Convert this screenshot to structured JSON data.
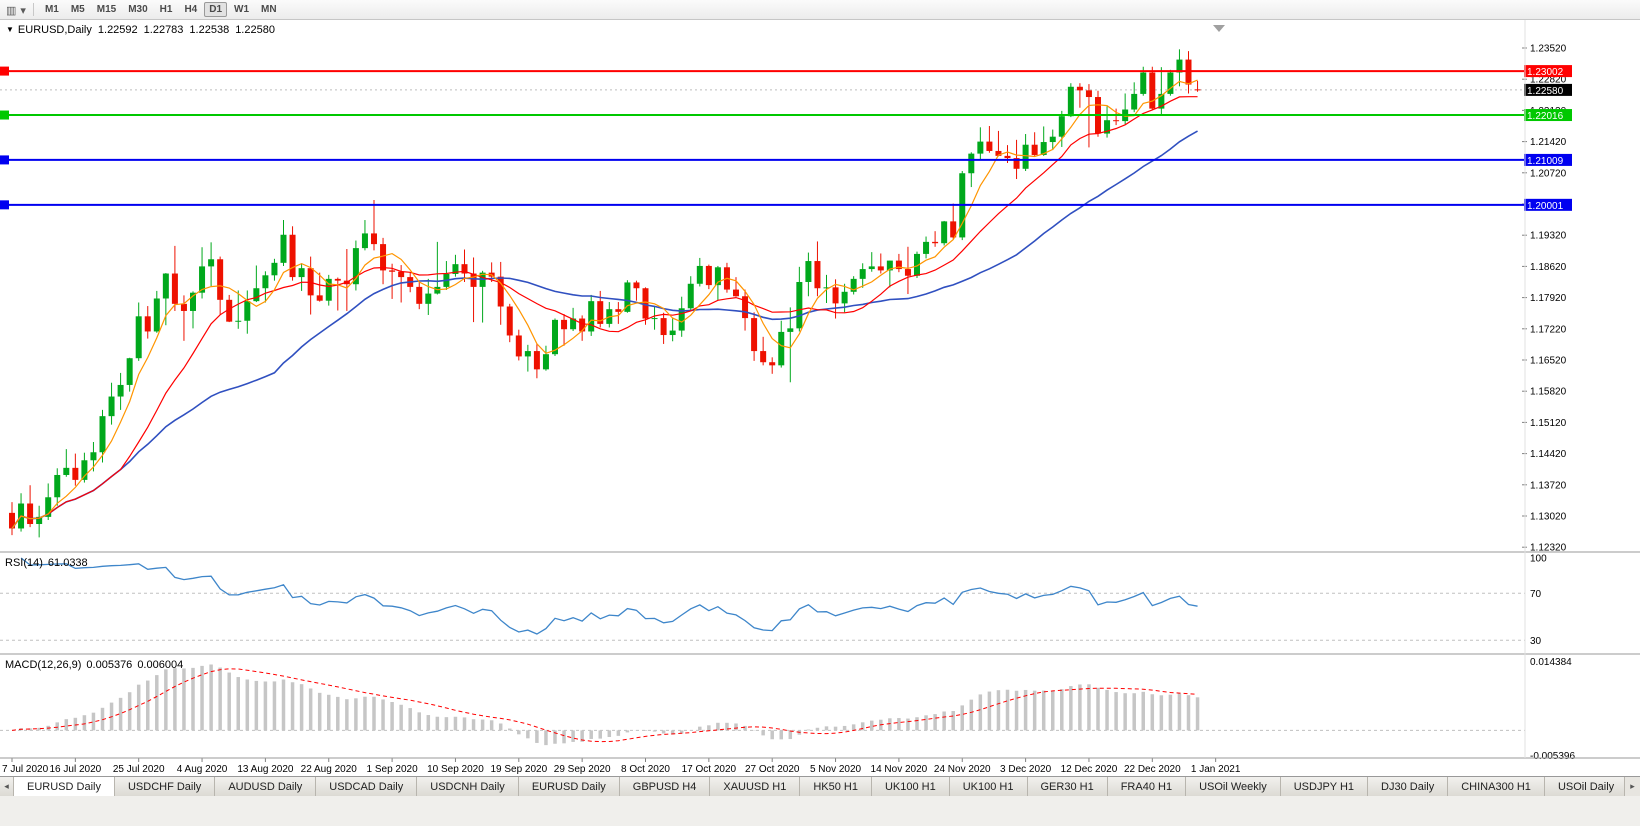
{
  "toolbar": {
    "icons": [
      {
        "name": "chart-window-icon",
        "glyph": "▥"
      },
      {
        "name": "chart-dropdown-caret-icon",
        "glyph": "▾"
      }
    ],
    "timeframes": [
      {
        "label": "M1",
        "active": false
      },
      {
        "label": "M5",
        "active": false
      },
      {
        "label": "M15",
        "active": false
      },
      {
        "label": "M30",
        "active": false
      },
      {
        "label": "H1",
        "active": false
      },
      {
        "label": "H4",
        "active": false
      },
      {
        "label": "D1",
        "active": true
      },
      {
        "label": "W1",
        "active": false
      },
      {
        "label": "MN",
        "active": false
      }
    ]
  },
  "chart_ui": {
    "title": {
      "collapse_glyph": "▼",
      "symbol_period": "EURUSD,Daily",
      "open": "1.22592",
      "high": "1.22783",
      "low": "1.22538",
      "close": "1.22580"
    }
  },
  "chart_data": {
    "type": "candlestick",
    "symbol": "EURUSD",
    "timeframe": "Daily",
    "colors": {
      "up": "#00A81C",
      "down": "#EE1100",
      "ma_fast": "#FF9500",
      "ma_mid": "#FF0000",
      "ma_slow": "#3050C0",
      "rsi_line": "#3E86CA",
      "hist": "#C6C6C6",
      "signal": "#FF0000",
      "level_dash": "#C0C0C0",
      "axis_text": "#000000"
    },
    "ma_periods": {
      "fast": 5,
      "mid": 13,
      "slow": 30
    },
    "price_axis": {
      "labels": [
        "1.23520",
        "1.22820",
        "1.22120",
        "1.21420",
        "1.20720",
        "1.20020",
        "1.19320",
        "1.18620",
        "1.17920",
        "1.17220",
        "1.16520",
        "1.15820",
        "1.15120",
        "1.14420",
        "1.13720",
        "1.13020",
        "1.12320"
      ],
      "boxes": [
        {
          "value": "1.23002",
          "color": "#FF0000"
        },
        {
          "value": "1.22580",
          "color": "#000000"
        },
        {
          "value": "1.22016",
          "color": "#00C800"
        },
        {
          "value": "1.21009",
          "color": "#0000F0"
        },
        {
          "value": "1.20001",
          "color": "#0000F0"
        }
      ]
    },
    "hlines": [
      {
        "price": 1.23002,
        "color": "#FF0000"
      },
      {
        "price": 1.22016,
        "color": "#00C800"
      },
      {
        "price": 1.21009,
        "color": "#0000F0"
      },
      {
        "price": 1.20001,
        "color": "#0000F0"
      }
    ],
    "date_axis": [
      "7 Jul 2020",
      "16 Jul 2020",
      "25 Jul 2020",
      "4 Aug 2020",
      "13 Aug 2020",
      "22 Aug 2020",
      "1 Sep 2020",
      "10 Sep 2020",
      "19 Sep 2020",
      "29 Sep 2020",
      "8 Oct 2020",
      "17 Oct 2020",
      "27 Oct 2020",
      "5 Nov 2020",
      "14 Nov 2020",
      "24 Nov 2020",
      "3 Dec 2020",
      "12 Dec 2020",
      "22 Dec 2020",
      "1 Jan 2021"
    ],
    "candles": [
      [
        1.1309,
        1.1333,
        1.1259,
        1.1274
      ],
      [
        1.1274,
        1.1353,
        1.1267,
        1.133
      ],
      [
        1.133,
        1.1371,
        1.1277,
        1.1284
      ],
      [
        1.1284,
        1.1325,
        1.1254,
        1.13
      ],
      [
        1.13,
        1.1375,
        1.1293,
        1.1344
      ],
      [
        1.1344,
        1.1409,
        1.1325,
        1.1394
      ],
      [
        1.1394,
        1.1452,
        1.139,
        1.141
      ],
      [
        1.141,
        1.1442,
        1.137,
        1.1383
      ],
      [
        1.1383,
        1.1444,
        1.1377,
        1.1427
      ],
      [
        1.1427,
        1.1468,
        1.1402,
        1.1445
      ],
      [
        1.1445,
        1.154,
        1.1422,
        1.1526
      ],
      [
        1.1526,
        1.1601,
        1.1507,
        1.157
      ],
      [
        1.157,
        1.1623,
        1.154,
        1.1596
      ],
      [
        1.1596,
        1.1657,
        1.1581,
        1.1656
      ],
      [
        1.1656,
        1.1781,
        1.165,
        1.175
      ],
      [
        1.175,
        1.1773,
        1.17,
        1.1716
      ],
      [
        1.1716,
        1.1807,
        1.1713,
        1.179
      ],
      [
        1.179,
        1.1847,
        1.173,
        1.1846
      ],
      [
        1.1846,
        1.1908,
        1.1762,
        1.1778
      ],
      [
        1.1778,
        1.1797,
        1.1695,
        1.1762
      ],
      [
        1.1762,
        1.1806,
        1.1723,
        1.1803
      ],
      [
        1.1803,
        1.1905,
        1.179,
        1.1862
      ],
      [
        1.1862,
        1.1916,
        1.1818,
        1.1878
      ],
      [
        1.1878,
        1.1884,
        1.1754,
        1.1787
      ],
      [
        1.1787,
        1.1798,
        1.1737,
        1.1738
      ],
      [
        1.1738,
        1.1808,
        1.1722,
        1.174
      ],
      [
        1.174,
        1.1808,
        1.1711,
        1.1784
      ],
      [
        1.1784,
        1.1864,
        1.1782,
        1.1813
      ],
      [
        1.1813,
        1.1851,
        1.1781,
        1.1842
      ],
      [
        1.1842,
        1.1879,
        1.183,
        1.187
      ],
      [
        1.187,
        1.1966,
        1.1863,
        1.1933
      ],
      [
        1.1933,
        1.1952,
        1.183,
        1.1838
      ],
      [
        1.1838,
        1.1869,
        1.1807,
        1.1858
      ],
      [
        1.1858,
        1.1884,
        1.1754,
        1.1797
      ],
      [
        1.1797,
        1.1848,
        1.1783,
        1.1785
      ],
      [
        1.1785,
        1.1843,
        1.1774,
        1.1834
      ],
      [
        1.1834,
        1.1837,
        1.1763,
        1.183
      ],
      [
        1.183,
        1.1901,
        1.1762,
        1.1822
      ],
      [
        1.1822,
        1.192,
        1.1808,
        1.1903
      ],
      [
        1.1903,
        1.1966,
        1.1898,
        1.1936
      ],
      [
        1.1936,
        1.2011,
        1.1898,
        1.1912
      ],
      [
        1.1912,
        1.1926,
        1.1822,
        1.1853
      ],
      [
        1.1853,
        1.1868,
        1.1789,
        1.185
      ],
      [
        1.185,
        1.1865,
        1.1781,
        1.1838
      ],
      [
        1.1838,
        1.1849,
        1.1804,
        1.1816
      ],
      [
        1.1816,
        1.1827,
        1.1766,
        1.1778
      ],
      [
        1.1778,
        1.1834,
        1.1753,
        1.1801
      ],
      [
        1.1801,
        1.1917,
        1.1799,
        1.1816
      ],
      [
        1.1816,
        1.1874,
        1.1809,
        1.1845
      ],
      [
        1.1845,
        1.1888,
        1.1839,
        1.1867
      ],
      [
        1.1867,
        1.19,
        1.1827,
        1.1846
      ],
      [
        1.1846,
        1.1882,
        1.1737,
        1.1816
      ],
      [
        1.1816,
        1.1852,
        1.1736,
        1.1848
      ],
      [
        1.1848,
        1.1871,
        1.1827,
        1.1839
      ],
      [
        1.1839,
        1.1872,
        1.1731,
        1.1772
      ],
      [
        1.1772,
        1.1778,
        1.1692,
        1.1707
      ],
      [
        1.1707,
        1.172,
        1.1651,
        1.166
      ],
      [
        1.166,
        1.1686,
        1.1626,
        1.1672
      ],
      [
        1.1672,
        1.1688,
        1.1611,
        1.1631
      ],
      [
        1.1631,
        1.1684,
        1.1628,
        1.1665
      ],
      [
        1.1665,
        1.1745,
        1.1661,
        1.1742
      ],
      [
        1.1742,
        1.1755,
        1.1684,
        1.1721
      ],
      [
        1.1721,
        1.1769,
        1.1717,
        1.1745
      ],
      [
        1.1745,
        1.1752,
        1.1695,
        1.1716
      ],
      [
        1.1716,
        1.1798,
        1.1706,
        1.1784
      ],
      [
        1.1784,
        1.1807,
        1.1725,
        1.1733
      ],
      [
        1.1733,
        1.1782,
        1.1725,
        1.1766
      ],
      [
        1.1766,
        1.1782,
        1.1733,
        1.176
      ],
      [
        1.176,
        1.1831,
        1.1758,
        1.1826
      ],
      [
        1.1826,
        1.183,
        1.1785,
        1.1813
      ],
      [
        1.1813,
        1.1815,
        1.1731,
        1.1745
      ],
      [
        1.1745,
        1.1772,
        1.172,
        1.1746
      ],
      [
        1.1746,
        1.1758,
        1.1688,
        1.1708
      ],
      [
        1.1708,
        1.1747,
        1.1694,
        1.1718
      ],
      [
        1.1718,
        1.1794,
        1.1704,
        1.1768
      ],
      [
        1.1768,
        1.184,
        1.1762,
        1.1823
      ],
      [
        1.1823,
        1.1881,
        1.1817,
        1.1863
      ],
      [
        1.1863,
        1.1866,
        1.1811,
        1.182
      ],
      [
        1.182,
        1.1863,
        1.1786,
        1.186
      ],
      [
        1.186,
        1.187,
        1.1803,
        1.181
      ],
      [
        1.181,
        1.1838,
        1.1794,
        1.1795
      ],
      [
        1.1795,
        1.181,
        1.1718,
        1.1746
      ],
      [
        1.1746,
        1.1759,
        1.165,
        1.1672
      ],
      [
        1.1672,
        1.1704,
        1.164,
        1.1647
      ],
      [
        1.1647,
        1.1658,
        1.1621,
        1.164
      ],
      [
        1.164,
        1.174,
        1.1635,
        1.1715
      ],
      [
        1.1715,
        1.177,
        1.1602,
        1.1723
      ],
      [
        1.1723,
        1.1861,
        1.1716,
        1.1827
      ],
      [
        1.1827,
        1.1893,
        1.1795,
        1.1874
      ],
      [
        1.1874,
        1.1918,
        1.1795,
        1.1813
      ],
      [
        1.1813,
        1.1843,
        1.178,
        1.1815
      ],
      [
        1.1815,
        1.1833,
        1.1745,
        1.1779
      ],
      [
        1.1779,
        1.1823,
        1.1759,
        1.1805
      ],
      [
        1.1805,
        1.184,
        1.1799,
        1.1834
      ],
      [
        1.1834,
        1.1869,
        1.1814,
        1.1856
      ],
      [
        1.1856,
        1.1894,
        1.185,
        1.1862
      ],
      [
        1.1862,
        1.1891,
        1.1846,
        1.1853
      ],
      [
        1.1853,
        1.1875,
        1.1815,
        1.1875
      ],
      [
        1.1875,
        1.189,
        1.1849,
        1.1856
      ],
      [
        1.1856,
        1.1906,
        1.18,
        1.1841
      ],
      [
        1.1841,
        1.1895,
        1.1836,
        1.189
      ],
      [
        1.189,
        1.1929,
        1.188,
        1.1917
      ],
      [
        1.1917,
        1.1941,
        1.1906,
        1.1914
      ],
      [
        1.1914,
        1.1964,
        1.1909,
        1.1963
      ],
      [
        1.1963,
        1.2003,
        1.1924,
        1.1927
      ],
      [
        1.1927,
        1.2076,
        1.1921,
        1.2071
      ],
      [
        1.2071,
        1.2118,
        1.204,
        1.2115
      ],
      [
        1.2115,
        1.2174,
        1.2103,
        1.2142
      ],
      [
        1.2142,
        1.2177,
        1.2117,
        1.2121
      ],
      [
        1.2121,
        1.2166,
        1.2109,
        1.211
      ],
      [
        1.211,
        1.2134,
        1.2094,
        1.2105
      ],
      [
        1.2105,
        1.2146,
        1.2058,
        1.2081
      ],
      [
        1.2081,
        1.2159,
        1.2076,
        1.2135
      ],
      [
        1.2135,
        1.2163,
        1.211,
        1.2112
      ],
      [
        1.2112,
        1.2176,
        1.211,
        1.2141
      ],
      [
        1.2141,
        1.2169,
        1.2123,
        1.2153
      ],
      [
        1.2153,
        1.2211,
        1.213,
        1.2199
      ],
      [
        1.2199,
        1.2273,
        1.2197,
        1.2265
      ],
      [
        1.2265,
        1.2273,
        1.2218,
        1.2257
      ],
      [
        1.2257,
        1.2271,
        1.2129,
        1.2242
      ],
      [
        1.2242,
        1.2256,
        1.2153,
        1.216
      ],
      [
        1.216,
        1.2221,
        1.2151,
        1.219
      ],
      [
        1.219,
        1.2216,
        1.2179,
        1.2188
      ],
      [
        1.2188,
        1.225,
        1.2181,
        1.2214
      ],
      [
        1.2214,
        1.2275,
        1.2208,
        1.2249
      ],
      [
        1.2249,
        1.231,
        1.2245,
        1.2297
      ],
      [
        1.2297,
        1.231,
        1.2214,
        1.2216
      ],
      [
        1.2216,
        1.2309,
        1.22,
        1.2249
      ],
      [
        1.2249,
        1.2303,
        1.2245,
        1.2297
      ],
      [
        1.2297,
        1.2349,
        1.2266,
        1.2326
      ],
      [
        1.2326,
        1.2345,
        1.225,
        1.227
      ],
      [
        1.22592,
        1.22783,
        1.22538,
        1.2258
      ]
    ]
  },
  "rsi": {
    "label": "RSI(14)",
    "value": "61.0338",
    "period": 14,
    "levels": [
      {
        "value": 100,
        "label": "100"
      },
      {
        "value": 70,
        "label": "70"
      },
      {
        "value": 30,
        "label": "30"
      }
    ]
  },
  "macd": {
    "label": "MACD(12,26,9)",
    "main_value": "0.005376",
    "signal_value": "0.006004",
    "fast": 12,
    "slow": 26,
    "signal": 9,
    "scale_max": 0.014384,
    "scale_min": -0.005396,
    "scale_max_label": "0.014384",
    "scale_min_label": "-0.005396"
  },
  "tabs": {
    "scroll_left_glyph": "◂",
    "scroll_right_glyph": "▸",
    "items": [
      {
        "label": "EURUSD Daily",
        "active": true
      },
      {
        "label": "USDCHF Daily",
        "active": false
      },
      {
        "label": "AUDUSD Daily",
        "active": false
      },
      {
        "label": "USDCAD Daily",
        "active": false
      },
      {
        "label": "USDCNH Daily",
        "active": false
      },
      {
        "label": "EURUSD Daily",
        "active": false
      },
      {
        "label": "GBPUSD H4",
        "active": false
      },
      {
        "label": "XAUUSD H1",
        "active": false
      },
      {
        "label": "HK50 H1",
        "active": false
      },
      {
        "label": "UK100 H1",
        "active": false
      },
      {
        "label": "UK100 H1",
        "active": false
      },
      {
        "label": "GER30 H1",
        "active": false
      },
      {
        "label": "FRA40 H1",
        "active": false
      },
      {
        "label": "USOil Weekly",
        "active": false
      },
      {
        "label": "USDJPY H1",
        "active": false
      },
      {
        "label": "DJ30 Daily",
        "active": false
      },
      {
        "label": "CHINA300 H1",
        "active": false
      },
      {
        "label": "USOil Daily",
        "active": false
      }
    ]
  }
}
